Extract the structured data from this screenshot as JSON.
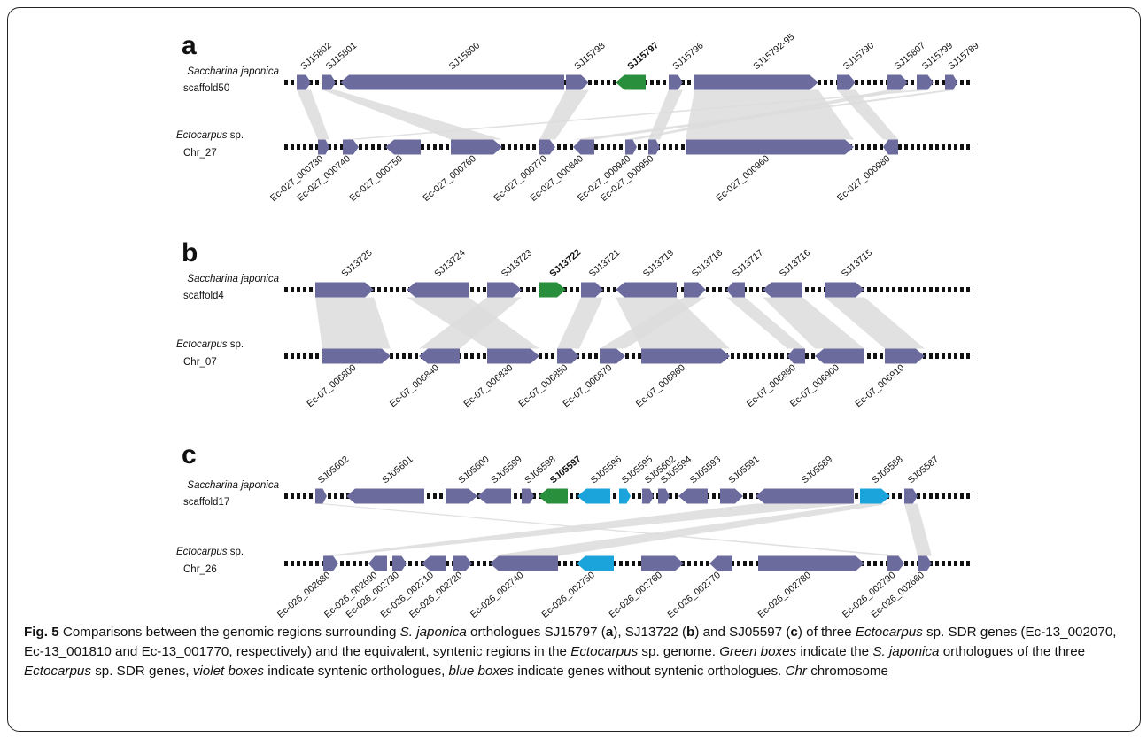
{
  "colors": {
    "violet": "#6b6b9e",
    "green": "#2a8f3c",
    "blue": "#1ba3dc",
    "band": "#dcdcdc",
    "chrom": "#111111"
  },
  "panels": [
    {
      "letter": "a",
      "top_species": "Saccharina japonica",
      "top_region": "scaffold50",
      "bottom_species_italic": "Ectocarpus",
      "bottom_species_rest": " sp.",
      "bottom_region": "Chr_27",
      "top_genes": [
        {
          "label": "SJ15802",
          "color": "violet"
        },
        {
          "label": "SJ15801",
          "color": "violet"
        },
        {
          "label": "SJ15800",
          "color": "violet"
        },
        {
          "label": "SJ15798",
          "color": "violet"
        },
        {
          "label": "SJ15797",
          "color": "green",
          "bold": true
        },
        {
          "label": "SJ15796",
          "color": "violet"
        },
        {
          "label": "SJ15792-95",
          "color": "violet"
        },
        {
          "label": "SJ15790",
          "color": "violet"
        },
        {
          "label": "SJ15807",
          "color": "violet"
        },
        {
          "label": "SJ15799",
          "color": "violet"
        },
        {
          "label": "SJ15789",
          "color": "violet"
        }
      ],
      "bottom_genes": [
        {
          "label": "Ec-027_000730",
          "color": "violet"
        },
        {
          "label": "Ec-027_000740",
          "color": "violet"
        },
        {
          "label": "Ec-027_000750",
          "color": "violet"
        },
        {
          "label": "Ec-027_000760",
          "color": "violet"
        },
        {
          "label": "Ec-027_000770",
          "color": "violet"
        },
        {
          "label": "Ec-027_000840",
          "color": "violet"
        },
        {
          "label": "Ec-027_000940",
          "color": "violet"
        },
        {
          "label": "Ec-027_000950",
          "color": "violet"
        },
        {
          "label": "Ec-027_000960",
          "color": "violet"
        },
        {
          "label": "Ec-027_000980",
          "color": "violet"
        }
      ]
    },
    {
      "letter": "b",
      "top_species": "Saccharina japonica",
      "top_region": "scaffold4",
      "bottom_species_italic": "Ectocarpus",
      "bottom_species_rest": " sp.",
      "bottom_region": "Chr_07",
      "top_genes": [
        {
          "label": "SJ13725",
          "color": "violet"
        },
        {
          "label": "SJ13724",
          "color": "violet"
        },
        {
          "label": "SJ13723",
          "color": "violet"
        },
        {
          "label": "SJ13722",
          "color": "green",
          "bold": true
        },
        {
          "label": "SJ13721",
          "color": "violet"
        },
        {
          "label": "SJ13719",
          "color": "violet"
        },
        {
          "label": "SJ13718",
          "color": "violet"
        },
        {
          "label": "SJ13717",
          "color": "violet"
        },
        {
          "label": "SJ13716",
          "color": "violet"
        },
        {
          "label": "SJ13715",
          "color": "violet"
        }
      ],
      "bottom_genes": [
        {
          "label": "Ec-07_006800",
          "color": "violet"
        },
        {
          "label": "Ec-07_006840",
          "color": "violet"
        },
        {
          "label": "Ec-07_006830",
          "color": "violet"
        },
        {
          "label": "Ec-07_006850",
          "color": "violet"
        },
        {
          "label": "Ec-07_006870",
          "color": "violet"
        },
        {
          "label": "Ec-07_006860",
          "color": "violet"
        },
        {
          "label": "Ec-07_006890",
          "color": "violet"
        },
        {
          "label": "Ec-07_006900",
          "color": "violet"
        },
        {
          "label": "Ec-07_006910",
          "color": "violet"
        }
      ]
    },
    {
      "letter": "c",
      "top_species": "Saccharina japonica",
      "top_region": "scaffold17",
      "bottom_species_italic": "Ectocarpus",
      "bottom_species_rest": " sp.",
      "bottom_region": "Chr_26",
      "top_genes": [
        {
          "label": "SJ05602",
          "color": "violet"
        },
        {
          "label": "SJ05601",
          "color": "violet"
        },
        {
          "label": "SJ05600",
          "color": "violet"
        },
        {
          "label": "SJ05599",
          "color": "violet"
        },
        {
          "label": "SJ05598",
          "color": "violet"
        },
        {
          "label": "SJ05597",
          "color": "green",
          "bold": true
        },
        {
          "label": "SJ05596",
          "color": "blue"
        },
        {
          "label": "SJ05595",
          "color": "blue"
        },
        {
          "label": "SJ05602",
          "color": "violet"
        },
        {
          "label": "SJ05594",
          "color": "violet"
        },
        {
          "label": "SJ05593",
          "color": "violet"
        },
        {
          "label": "SJ05591",
          "color": "violet"
        },
        {
          "label": "SJ05589",
          "color": "violet"
        },
        {
          "label": "SJ05588",
          "color": "blue"
        },
        {
          "label": "SJ05587",
          "color": "violet"
        }
      ],
      "bottom_genes": [
        {
          "label": "Ec-026_002680",
          "color": "violet"
        },
        {
          "label": "Ec-026_002690",
          "color": "violet"
        },
        {
          "label": "Ec-026_002730",
          "color": "violet"
        },
        {
          "label": "Ec-026_002710",
          "color": "violet"
        },
        {
          "label": "Ec-026_002720",
          "color": "violet"
        },
        {
          "label": "Ec-026_002740",
          "color": "violet"
        },
        {
          "label": "Ec-026_002750",
          "color": "blue"
        },
        {
          "label": "Ec-026_002760",
          "color": "violet"
        },
        {
          "label": "Ec-026_002770",
          "color": "violet"
        },
        {
          "label": "Ec-026_002780",
          "color": "violet"
        },
        {
          "label": "Ec-026_002790",
          "color": "violet"
        },
        {
          "label": "Ec-026_002660",
          "color": "violet"
        }
      ]
    }
  ],
  "caption": {
    "fig": "Fig. 5",
    "t1": " Comparisons between the genomic regions surrounding ",
    "t2": "S. japonica",
    "t3": " orthologues SJ15797 (",
    "t4": "a",
    "t5": "), SJ13722 (",
    "t6": "b",
    "t7": ") and SJ05597 (",
    "t8": "c",
    "t9": ") of three ",
    "t10": "Ectocarpus",
    "t11": " sp. SDR genes (Ec-13_002070, Ec-13_001810 and Ec-13_001770, respectively) and the equivalent, syntenic regions in the ",
    "t12": "Ectocarpus",
    "t13": " sp. genome. ",
    "t14": "Green boxes",
    "t15": " indicate the ",
    "t16": "S. japonica",
    "t17": " orthologues of the three ",
    "t18": "Ectocarpus",
    "t19": " sp. SDR genes, ",
    "t20": "violet boxes",
    "t21": " indicate syntenic orthologues, ",
    "t22": "blue boxes",
    "t23": " indicate genes without syntenic orthologues. ",
    "t24": "Chr",
    "t25": " chromosome"
  }
}
